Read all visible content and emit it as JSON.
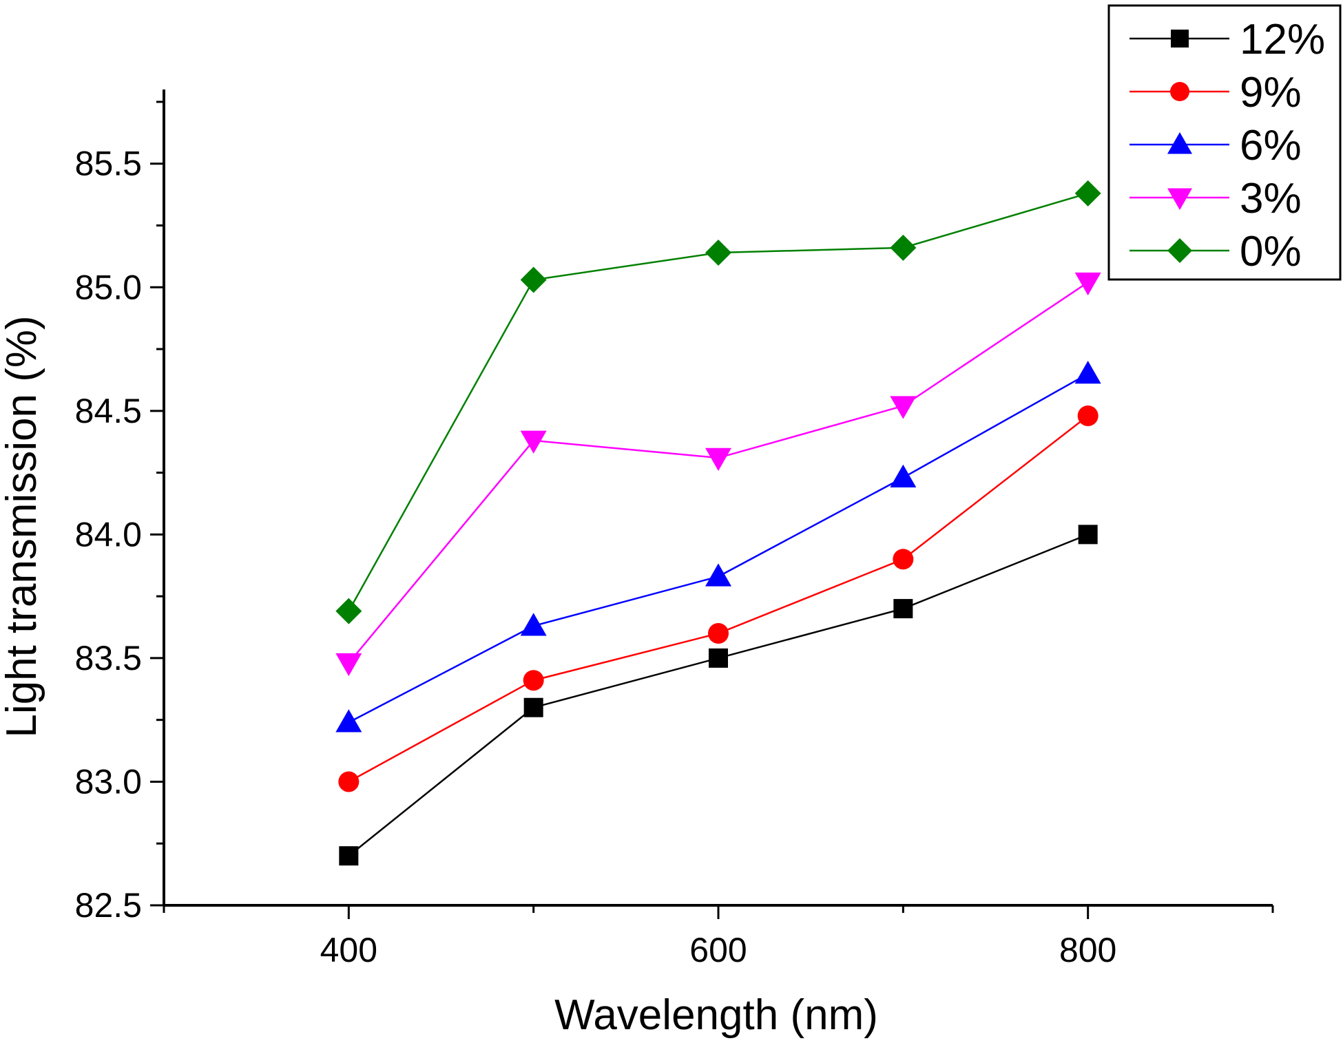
{
  "chart_data": {
    "type": "line",
    "title": "",
    "xlabel": "Wavelength (nm)",
    "ylabel": "Light transmission (%)",
    "xlim": [
      300,
      900
    ],
    "ylim": [
      82.5,
      85.8
    ],
    "xticks": [
      400,
      600,
      800
    ],
    "xtick_labels": [
      "400",
      "600",
      "800"
    ],
    "yticks": [
      82.5,
      83.0,
      83.5,
      84.0,
      84.5,
      85.0,
      85.5
    ],
    "ytick_labels": [
      "82.5",
      "83.0",
      "83.5",
      "84.0",
      "84.5",
      "85.0",
      "85.5"
    ],
    "x": [
      400,
      500,
      600,
      700,
      800
    ],
    "legend_position": "top-right",
    "grid": false,
    "series": [
      {
        "name": "12%",
        "color": "#000000",
        "marker": "square",
        "values": [
          82.7,
          83.3,
          83.5,
          83.7,
          84.0
        ]
      },
      {
        "name": "9%",
        "color": "#ff0000",
        "marker": "circle",
        "values": [
          83.0,
          83.41,
          83.6,
          83.9,
          84.48
        ]
      },
      {
        "name": "6%",
        "color": "#0000ff",
        "marker": "triangle-up",
        "values": [
          83.24,
          83.63,
          83.83,
          84.23,
          84.65
        ]
      },
      {
        "name": "3%",
        "color": "#ff00ff",
        "marker": "triangle-down",
        "values": [
          83.48,
          84.38,
          84.31,
          84.52,
          85.02
        ]
      },
      {
        "name": "0%",
        "color": "#008000",
        "marker": "diamond",
        "values": [
          83.69,
          85.03,
          85.14,
          85.16,
          85.38
        ]
      }
    ]
  }
}
